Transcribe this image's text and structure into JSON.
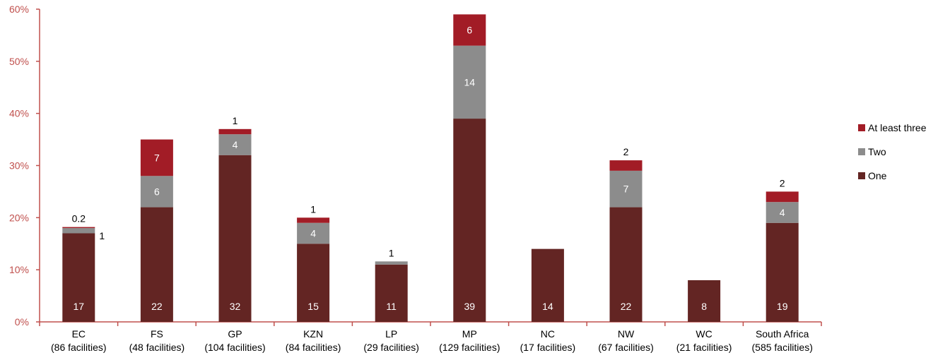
{
  "chart_data": {
    "type": "bar",
    "stacked": true,
    "title": "",
    "xlabel": "",
    "ylabel": "",
    "ylim": [
      0,
      60
    ],
    "y_ticks": [
      "0%",
      "10%",
      "20%",
      "30%",
      "40%",
      "50%",
      "60%"
    ],
    "grid": false,
    "legend_position": "right",
    "categories": [
      [
        "EC",
        "(86 facilities)"
      ],
      [
        "FS",
        "(48 facilities)"
      ],
      [
        "GP",
        "(104 facilities)"
      ],
      [
        "KZN",
        "(84 facilities)"
      ],
      [
        "LP",
        "(29 facilities)"
      ],
      [
        "MP",
        "(129 facilities)"
      ],
      [
        "NC",
        "(17 facilities)"
      ],
      [
        "NW",
        "(67 facilities)"
      ],
      [
        "WC",
        "(21 facilities)"
      ],
      [
        "South Africa",
        "(585 facilities)"
      ]
    ],
    "series": [
      {
        "name": "One",
        "color": "#632523",
        "values": [
          17,
          22,
          32,
          15,
          11,
          39,
          14,
          22,
          8,
          19
        ],
        "labels": [
          "17",
          "22",
          "32",
          "15",
          "11",
          "39",
          "14",
          "22",
          "8",
          "19"
        ]
      },
      {
        "name": "Two",
        "color": "#8c8c8c",
        "values": [
          1,
          6,
          4,
          4,
          0.6,
          14,
          0,
          7,
          0,
          4
        ],
        "labels": [
          "1",
          "6",
          "4",
          "4",
          "1",
          "14",
          "",
          "7",
          "",
          "4"
        ]
      },
      {
        "name": "At least three",
        "color": "#a21c26",
        "values": [
          0.2,
          7,
          1,
          1,
          0,
          6,
          0,
          2,
          0,
          2
        ],
        "labels": [
          "0.2",
          "7",
          "1",
          "1",
          "",
          "6",
          "",
          "2",
          "",
          "2"
        ]
      }
    ],
    "axis_color": "#c0504d"
  }
}
